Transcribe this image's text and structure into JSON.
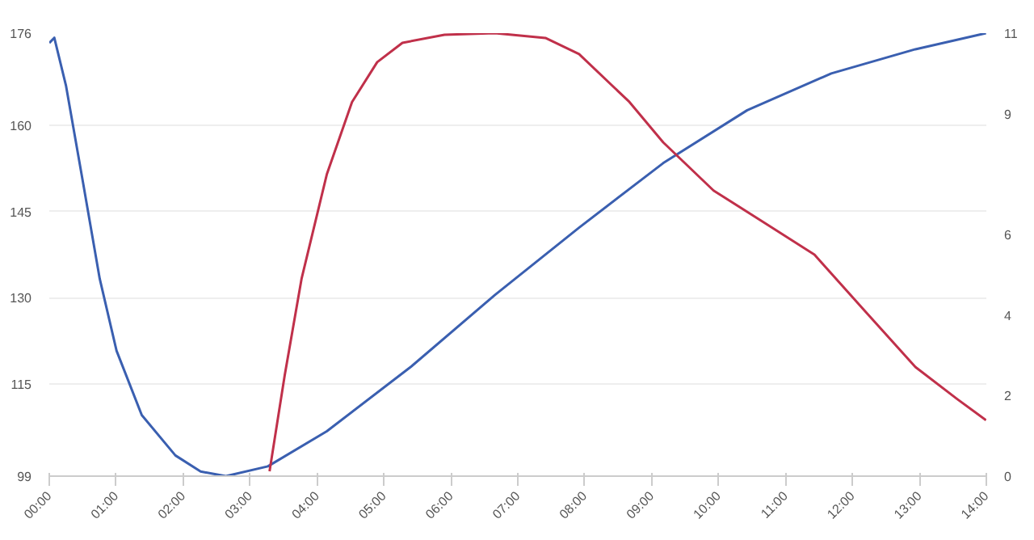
{
  "chart_data": {
    "type": "line",
    "xlim": [
      0,
      14
    ],
    "xticks": [
      {
        "value": 0,
        "label": "00:00"
      },
      {
        "value": 1,
        "label": "01:00"
      },
      {
        "value": 2,
        "label": "02:00"
      },
      {
        "value": 3,
        "label": "03:00"
      },
      {
        "value": 4,
        "label": "04:00"
      },
      {
        "value": 5,
        "label": "05:00"
      },
      {
        "value": 6,
        "label": "06:00"
      },
      {
        "value": 7,
        "label": "07:00"
      },
      {
        "value": 8,
        "label": "08:00"
      },
      {
        "value": 9,
        "label": "09:00"
      },
      {
        "value": 10,
        "label": "10:00"
      },
      {
        "value": 11,
        "label": "11:00"
      },
      {
        "value": 12,
        "label": "12:00"
      },
      {
        "value": 13,
        "label": "13:00"
      },
      {
        "value": 14,
        "label": "14:00"
      }
    ],
    "ylim": [
      99,
      176
    ],
    "yticks": [
      99,
      115,
      130,
      145,
      160,
      176
    ],
    "y2lim": [
      0,
      11
    ],
    "y2ticks": [
      0,
      2,
      4,
      6,
      9,
      11
    ],
    "grid": "y",
    "line_style": "solid",
    "series": [
      {
        "color": "#3a5fb0",
        "x": [
          0,
          0.075,
          0.251,
          0.503,
          0.754,
          1.005,
          1.382,
          1.884,
          2.261,
          2.638,
          3.266,
          4.146,
          5.402,
          6.658,
          7.915,
          9.171,
          10.427,
          11.683,
          12.94,
          13.995
        ],
        "values": [
          174.3,
          175.2,
          166.8,
          150.1,
          133.3,
          120.8,
          109.6,
          102.6,
          99.8,
          99.0,
          100.7,
          106.8,
          118.0,
          130.5,
          142.2,
          153.4,
          162.6,
          169.0,
          173.2,
          176.0
        ]
      },
      {
        "color": "#c0304a",
        "axis": "y2",
        "x": [
          3.291,
          3.518,
          3.769,
          4.146,
          4.523,
          4.899,
          5.276,
          5.905,
          6.658,
          7.412,
          7.915,
          8.668,
          9.171,
          9.925,
          10.678,
          11.432,
          12.186,
          12.94,
          13.568,
          13.995
        ],
        "values": [
          0.12,
          2.51,
          4.9,
          7.49,
          9.29,
          10.28,
          10.76,
          10.96,
          11.0,
          10.88,
          10.48,
          9.29,
          8.29,
          7.09,
          6.3,
          5.5,
          4.1,
          2.71,
          1.91,
          1.39
        ]
      }
    ]
  }
}
